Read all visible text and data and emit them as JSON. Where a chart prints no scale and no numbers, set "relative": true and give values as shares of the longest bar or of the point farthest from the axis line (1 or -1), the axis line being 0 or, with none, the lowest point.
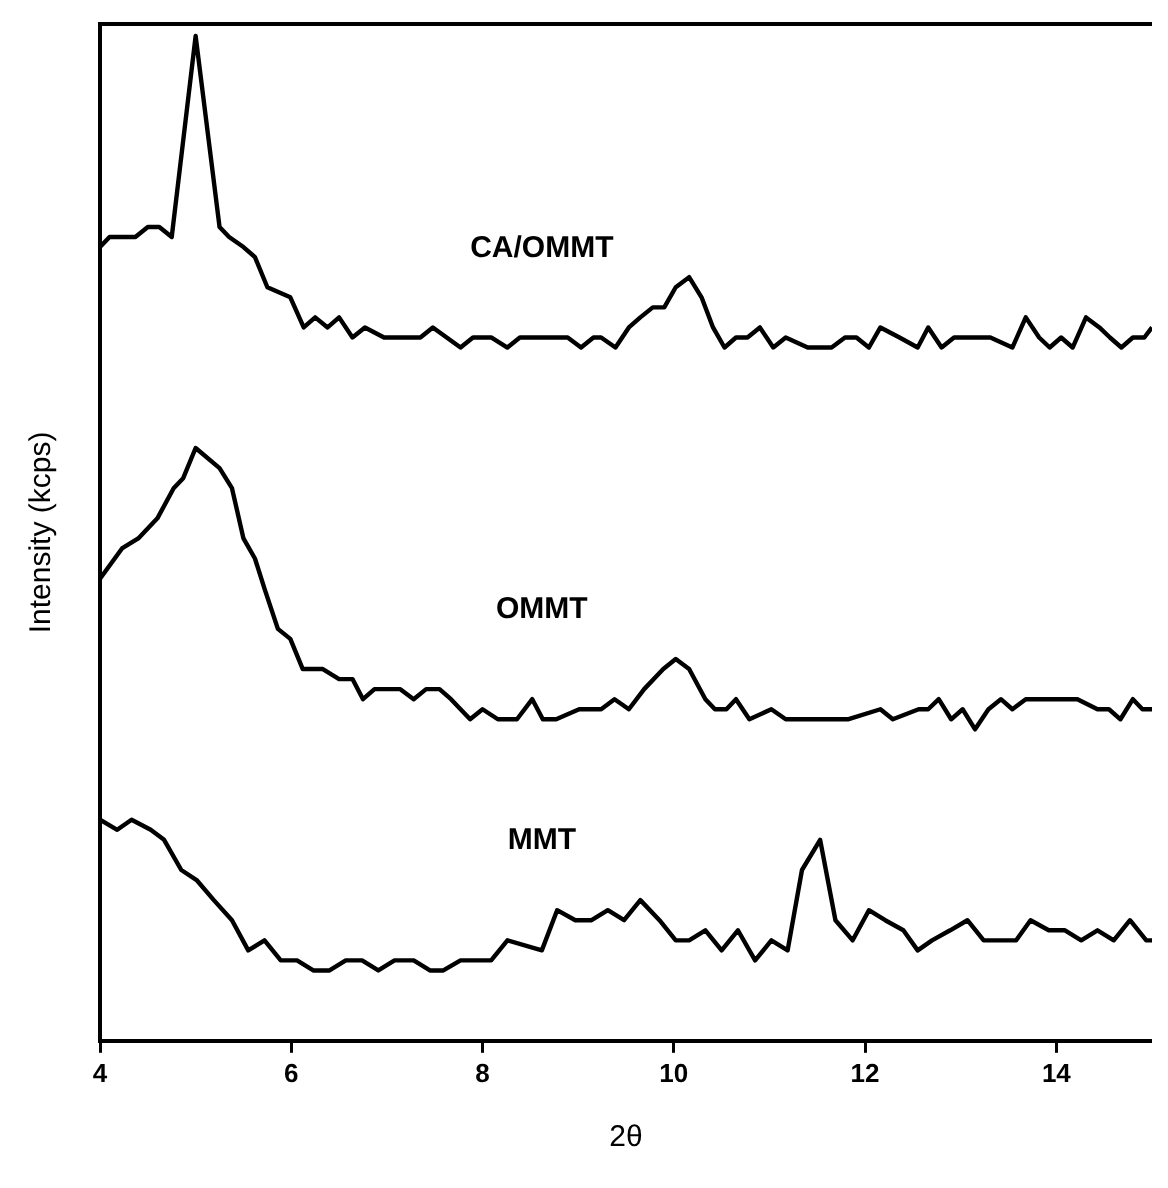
{
  "chart_data": {
    "type": "line",
    "relative": true,
    "xlabel": "2θ",
    "ylabel": "Intensity (kcps)",
    "xlim": [
      4,
      15
    ],
    "xticks": [
      4,
      6,
      8,
      10,
      12,
      14
    ],
    "grid": false,
    "legend": false,
    "marker": "none",
    "line_style": "solid",
    "series": [
      {
        "name": "CA/OMMT",
        "color": "#000000",
        "x": [
          4.0,
          4.1,
          4.37,
          4.5,
          4.62,
          4.75,
          5.0,
          5.25,
          5.35,
          5.5,
          5.62,
          5.75,
          5.99,
          6.13,
          6.25,
          6.38,
          6.5,
          6.64,
          6.77,
          6.97,
          7.28,
          7.35,
          7.48,
          7.77,
          7.9,
          8.09,
          8.26,
          8.39,
          8.6,
          8.77,
          8.89,
          9.03,
          9.16,
          9.24,
          9.39,
          9.53,
          9.65,
          9.78,
          9.9,
          10.02,
          10.16,
          10.29,
          10.41,
          10.53,
          10.65,
          10.77,
          10.9,
          11.04,
          11.17,
          11.4,
          11.65,
          11.79,
          11.91,
          12.04,
          12.16,
          12.36,
          12.55,
          12.66,
          12.8,
          12.93,
          13.17,
          13.31,
          13.54,
          13.68,
          13.82,
          13.93,
          14.05,
          14.17,
          14.31,
          14.45,
          14.56,
          14.68,
          14.8,
          14.92,
          15.0
        ],
        "values": [
          0.79,
          0.8,
          0.8,
          0.81,
          0.81,
          0.8,
          1.0,
          0.81,
          0.8,
          0.79,
          0.78,
          0.75,
          0.74,
          0.71,
          0.72,
          0.71,
          0.72,
          0.7,
          0.71,
          0.7,
          0.7,
          0.7,
          0.71,
          0.69,
          0.7,
          0.7,
          0.69,
          0.7,
          0.7,
          0.7,
          0.7,
          0.69,
          0.7,
          0.7,
          0.69,
          0.71,
          0.72,
          0.73,
          0.73,
          0.75,
          0.76,
          0.74,
          0.71,
          0.69,
          0.7,
          0.7,
          0.71,
          0.69,
          0.7,
          0.69,
          0.69,
          0.7,
          0.7,
          0.69,
          0.71,
          0.7,
          0.69,
          0.71,
          0.69,
          0.7,
          0.7,
          0.7,
          0.69,
          0.72,
          0.7,
          0.69,
          0.7,
          0.69,
          0.72,
          0.71,
          0.7,
          0.69,
          0.7,
          0.7,
          0.71
        ]
      },
      {
        "name": "OMMT",
        "color": "#000000",
        "x": [
          4.0,
          4.23,
          4.4,
          4.6,
          4.77,
          4.87,
          5.0,
          5.25,
          5.38,
          5.5,
          5.62,
          5.72,
          5.86,
          5.99,
          6.12,
          6.33,
          6.5,
          6.64,
          6.75,
          6.87,
          7.01,
          7.14,
          7.28,
          7.41,
          7.55,
          7.67,
          7.87,
          8.0,
          8.16,
          8.36,
          8.52,
          8.63,
          8.77,
          9.01,
          9.14,
          9.24,
          9.38,
          9.53,
          9.69,
          9.89,
          10.02,
          10.16,
          10.33,
          10.43,
          10.55,
          10.65,
          10.79,
          11.02,
          11.17,
          11.51,
          11.82,
          12.16,
          12.29,
          12.56,
          12.66,
          12.77,
          12.9,
          13.02,
          13.15,
          13.29,
          13.42,
          13.54,
          13.68,
          13.98,
          14.22,
          14.43,
          14.55,
          14.67,
          14.8,
          14.9,
          15.0
        ],
        "values": [
          0.46,
          0.49,
          0.5,
          0.52,
          0.55,
          0.56,
          0.59,
          0.57,
          0.55,
          0.5,
          0.48,
          0.45,
          0.41,
          0.4,
          0.37,
          0.37,
          0.36,
          0.36,
          0.34,
          0.35,
          0.35,
          0.35,
          0.34,
          0.35,
          0.35,
          0.34,
          0.32,
          0.33,
          0.32,
          0.32,
          0.34,
          0.32,
          0.32,
          0.33,
          0.33,
          0.33,
          0.34,
          0.33,
          0.35,
          0.37,
          0.38,
          0.37,
          0.34,
          0.33,
          0.33,
          0.34,
          0.32,
          0.33,
          0.32,
          0.32,
          0.32,
          0.33,
          0.32,
          0.33,
          0.33,
          0.34,
          0.32,
          0.33,
          0.31,
          0.33,
          0.34,
          0.33,
          0.34,
          0.34,
          0.34,
          0.33,
          0.33,
          0.32,
          0.34,
          0.33,
          0.33
        ]
      },
      {
        "name": "MMT",
        "color": "#000000",
        "x": [
          4.0,
          4.18,
          4.33,
          4.53,
          4.67,
          4.85,
          5.01,
          5.19,
          5.38,
          5.55,
          5.72,
          5.89,
          6.06,
          6.23,
          6.4,
          6.57,
          6.74,
          6.91,
          7.08,
          7.28,
          7.45,
          7.59,
          7.77,
          8.09,
          8.26,
          8.62,
          8.78,
          8.97,
          9.14,
          9.31,
          9.48,
          9.65,
          9.85,
          10.02,
          10.16,
          10.33,
          10.5,
          10.67,
          10.85,
          11.02,
          11.19,
          11.34,
          11.53,
          11.69,
          11.87,
          12.04,
          12.21,
          12.4,
          12.55,
          12.7,
          12.89,
          13.07,
          13.24,
          13.41,
          13.58,
          13.73,
          13.92,
          14.09,
          14.26,
          14.43,
          14.6,
          14.77,
          14.94,
          15.0
        ],
        "values": [
          0.22,
          0.21,
          0.22,
          0.21,
          0.2,
          0.17,
          0.16,
          0.14,
          0.12,
          0.09,
          0.1,
          0.08,
          0.08,
          0.07,
          0.07,
          0.08,
          0.08,
          0.07,
          0.08,
          0.08,
          0.07,
          0.07,
          0.08,
          0.08,
          0.1,
          0.09,
          0.13,
          0.12,
          0.12,
          0.13,
          0.12,
          0.14,
          0.12,
          0.1,
          0.1,
          0.11,
          0.09,
          0.11,
          0.08,
          0.1,
          0.09,
          0.17,
          0.2,
          0.12,
          0.1,
          0.13,
          0.12,
          0.11,
          0.09,
          0.1,
          0.11,
          0.12,
          0.1,
          0.1,
          0.1,
          0.12,
          0.11,
          0.11,
          0.1,
          0.11,
          0.1,
          0.12,
          0.1,
          0.1
        ]
      }
    ]
  }
}
